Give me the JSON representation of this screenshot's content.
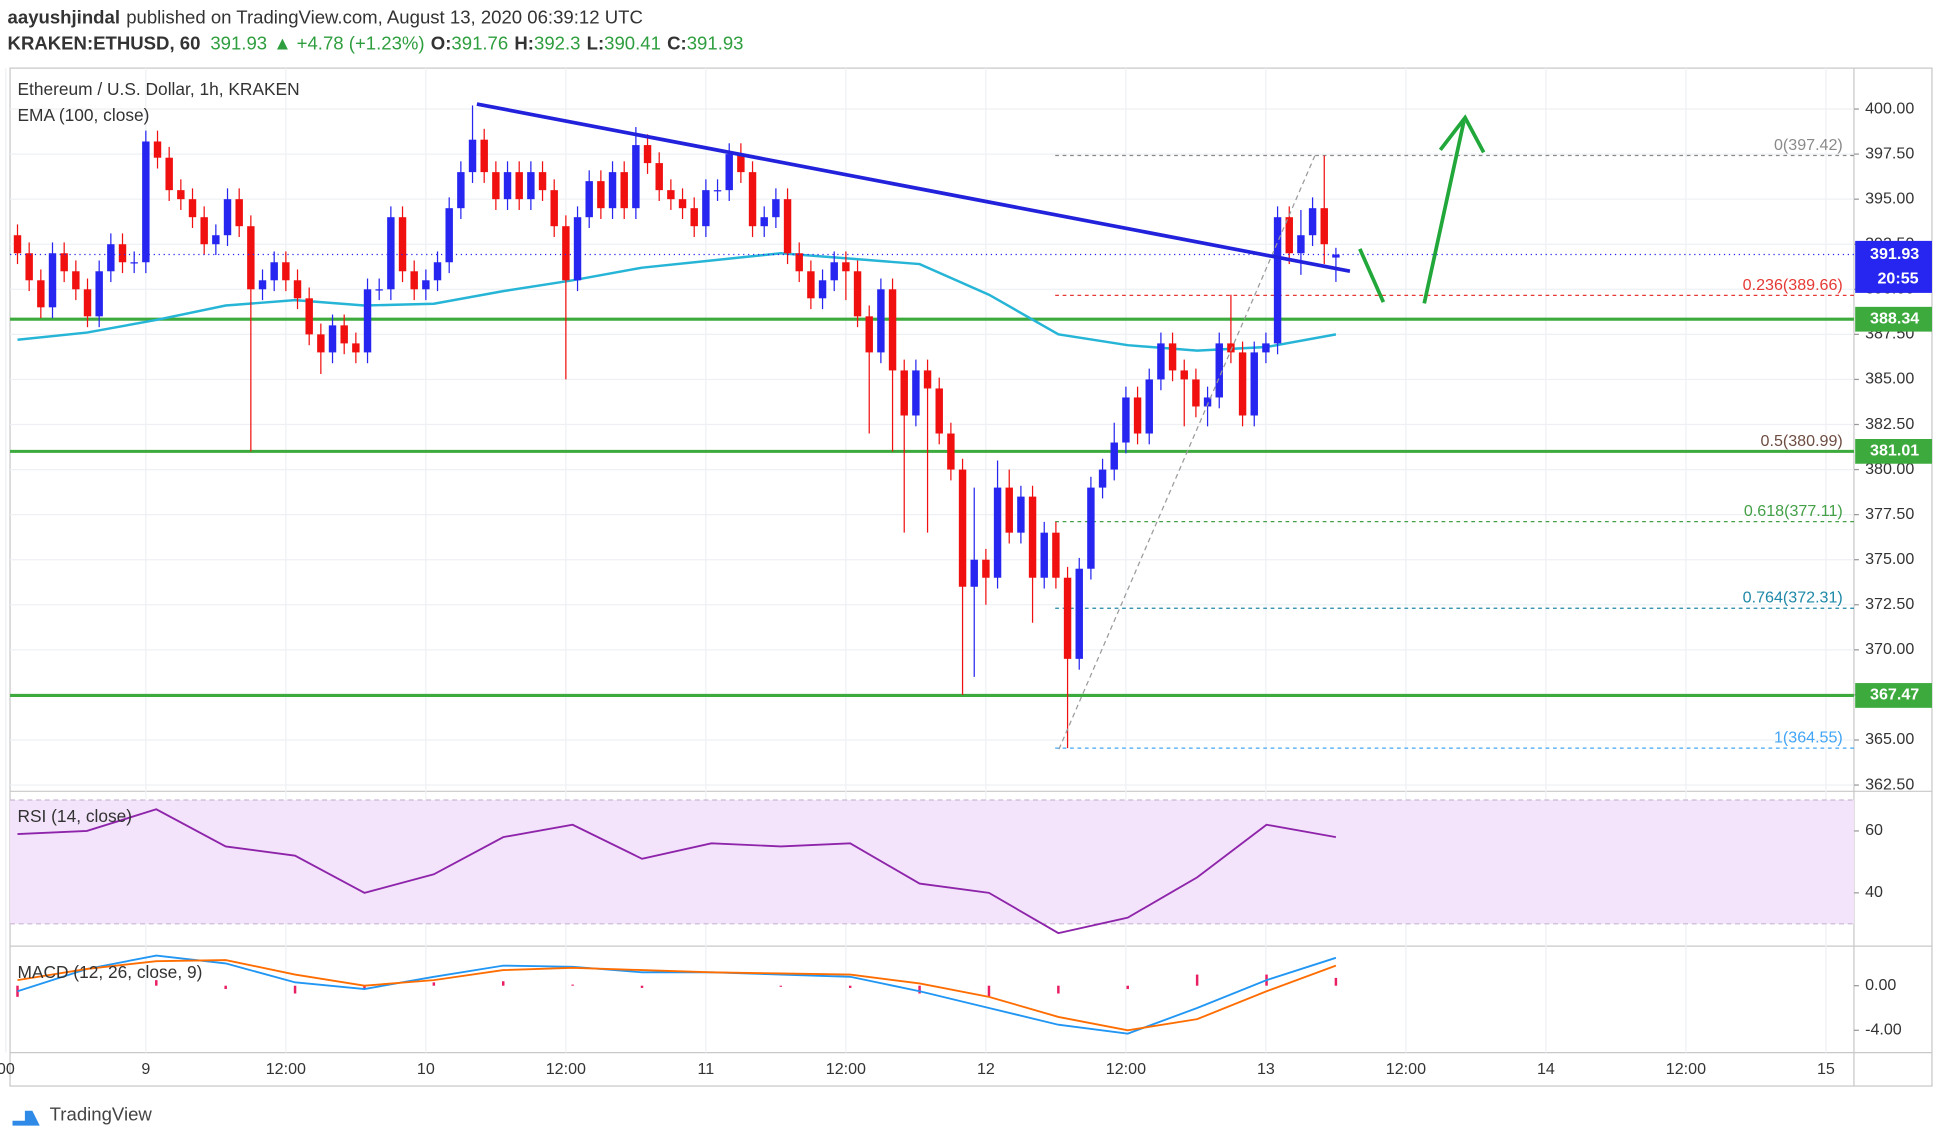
{
  "header": {
    "author": "aayushjindal",
    "published": "published on TradingView.com, August 13, 2020 06:39:12 UTC",
    "symbol": "KRAKEN:ETHUSD, 60",
    "price": 391.93,
    "change": "+4.78 (+1.23%)",
    "ohlc": [
      {
        "label": "O:",
        "value": 391.76
      },
      {
        "label": "H:",
        "value": 392.3
      },
      {
        "label": "L:",
        "value": 390.41
      },
      {
        "label": "C:",
        "value": 391.93
      }
    ]
  },
  "brand": "TradingView",
  "chart_data": {
    "type": "candlestick",
    "title": "Ethereum / U.S. Dollar, 1h, KRAKEN",
    "up_color": "#2626f0",
    "down_color": "#f01010",
    "grid": true,
    "xlim": [
      -0.64,
      157.4
    ],
    "xticks": [
      {
        "value": -1,
        "label": "00"
      },
      {
        "value": 11,
        "label": "9"
      },
      {
        "value": 23,
        "label": "12:00"
      },
      {
        "value": 35,
        "label": "10"
      },
      {
        "value": 47,
        "label": "12:00"
      },
      {
        "value": 59,
        "label": "11"
      },
      {
        "value": 71,
        "label": "12:00"
      },
      {
        "value": 83,
        "label": "12"
      },
      {
        "value": 95,
        "label": "12:00"
      },
      {
        "value": 107,
        "label": "13"
      },
      {
        "value": 119,
        "label": "12:00"
      },
      {
        "value": 131,
        "label": "14"
      },
      {
        "value": 143,
        "label": "12:00"
      },
      {
        "value": 155,
        "label": "15"
      }
    ],
    "ylim": [
      362.29,
      402.27
    ],
    "yticks": [
      {
        "value": 362.5,
        "label": "362.50"
      },
      {
        "value": 365,
        "label": "365.00"
      },
      {
        "value": 367.5,
        "label": "367.50"
      },
      {
        "value": 370,
        "label": "370.00"
      },
      {
        "value": 372.5,
        "label": "372.50"
      },
      {
        "value": 375,
        "label": "375.00"
      },
      {
        "value": 377.5,
        "label": "377.50"
      },
      {
        "value": 380,
        "label": "380.00"
      },
      {
        "value": 382.5,
        "label": "382.50"
      },
      {
        "value": 385,
        "label": "385.00"
      },
      {
        "value": 387.5,
        "label": "387.50"
      },
      {
        "value": 390,
        "label": "390.00"
      },
      {
        "value": 392.5,
        "label": "392.50"
      },
      {
        "value": 395,
        "label": "395.00"
      },
      {
        "value": 397.5,
        "label": "397.50"
      },
      {
        "value": 400,
        "label": "400.00"
      }
    ],
    "candles": {
      "open": [
        393,
        392,
        390.5,
        389,
        392,
        391,
        390,
        388.5,
        391,
        392.5,
        391.5,
        391.5,
        398.2,
        397.3,
        395.5,
        395,
        394,
        392.5,
        393,
        395,
        393.5,
        390,
        390.5,
        391.5,
        390.5,
        389.5,
        387.5,
        386.5,
        388,
        387,
        386.5,
        390,
        390,
        394,
        391,
        390,
        390.5,
        391.5,
        394.5,
        396.5,
        398.3,
        396.5,
        395,
        396.5,
        395,
        396.5,
        395.5,
        393.5,
        390.5,
        394,
        396,
        394.5,
        396.5,
        394.5,
        398,
        397,
        395.5,
        395,
        394.5,
        393.5,
        395.5,
        395.5,
        397.5,
        396.5,
        393.5,
        394,
        395,
        392,
        391,
        389.5,
        390.5,
        391.5,
        391,
        388.5,
        386.5,
        390,
        385.5,
        383,
        385.5,
        384.5,
        382,
        380,
        373.5,
        375,
        374,
        379,
        376.5,
        378.5,
        374,
        376.5,
        374,
        369.5,
        374.5,
        379,
        380,
        381.5,
        384,
        382,
        385,
        387,
        385.5,
        385,
        383.5,
        384,
        387,
        386.5,
        383,
        386.5,
        387,
        394,
        392,
        393,
        394.5,
        391.76
      ],
      "high": [
        393.6,
        392.6,
        391.1,
        392.6,
        392.6,
        391.6,
        390.6,
        391.6,
        393.1,
        393.1,
        392.1,
        398.8,
        398.8,
        397.9,
        396.1,
        395.6,
        394.6,
        393.6,
        395.6,
        395.6,
        394.1,
        391.1,
        392.1,
        392.1,
        391.1,
        390.1,
        388.1,
        388.6,
        388.6,
        387.6,
        390.6,
        390.6,
        394.6,
        394.6,
        391.6,
        391.1,
        392.1,
        395.1,
        397.1,
        400.2,
        398.9,
        397.1,
        397.1,
        397.1,
        397.1,
        397.1,
        396.1,
        394.1,
        394.6,
        396.6,
        396.6,
        397.1,
        397.1,
        399,
        398.6,
        397.6,
        396.1,
        395.6,
        395.1,
        396.1,
        396.1,
        398.1,
        398.1,
        397.1,
        394.6,
        395.6,
        395.6,
        392.6,
        391.6,
        391.1,
        392.1,
        392.1,
        391.6,
        389.1,
        390.6,
        390.6,
        386.1,
        386.1,
        386.1,
        385.1,
        382.6,
        380.6,
        379,
        375.6,
        380.5,
        380,
        379.1,
        379.1,
        377.1,
        377.1,
        374.6,
        375.1,
        379.6,
        380.6,
        382.6,
        384.6,
        384.6,
        385.6,
        387.6,
        387.6,
        386.1,
        385.6,
        384.6,
        387.6,
        389.7,
        387.1,
        387.1,
        387.6,
        394.6,
        394.6,
        394.4,
        395.1,
        397.42,
        392.3
      ],
      "low": [
        391.4,
        389.9,
        388.4,
        388.4,
        390.4,
        389.4,
        387.9,
        387.9,
        390.4,
        390.9,
        390.9,
        390.9,
        396.7,
        394.9,
        394.4,
        393.4,
        391.9,
        391.9,
        392.4,
        392.9,
        381,
        389.4,
        389.9,
        389.9,
        388.9,
        386.9,
        385.3,
        385.9,
        386.4,
        385.9,
        385.9,
        389.4,
        389.4,
        390.4,
        389.4,
        389.4,
        389.9,
        390.9,
        393.9,
        395.9,
        395.9,
        394.4,
        394.4,
        394.4,
        394.4,
        394.9,
        392.9,
        385,
        389.9,
        393.4,
        393.9,
        393.9,
        393.9,
        393.9,
        396.4,
        394.9,
        394.4,
        393.9,
        392.9,
        392.9,
        394.9,
        394.9,
        395.9,
        392.9,
        392.9,
        393.4,
        391.4,
        390.4,
        388.9,
        388.9,
        389.9,
        389.4,
        387.9,
        382,
        385.9,
        381,
        376.5,
        382.4,
        376.5,
        381.4,
        379.4,
        367.5,
        368.5,
        372.5,
        373.4,
        375.9,
        375.9,
        371.5,
        373.4,
        373.4,
        364.55,
        368.9,
        373.9,
        378.4,
        379.4,
        380.9,
        381.4,
        381.4,
        384.4,
        384.9,
        382.4,
        382.9,
        382.4,
        383.4,
        385.9,
        382.4,
        382.4,
        385.9,
        386.4,
        391.4,
        390.8,
        392.4,
        391.4,
        390.41
      ],
      "close": [
        392,
        390.5,
        389,
        392,
        391,
        390,
        388.5,
        391,
        392.5,
        391.5,
        391.5,
        398.2,
        397.3,
        395.5,
        395,
        394,
        392.5,
        393,
        395,
        393.5,
        390,
        390.5,
        391.5,
        390.5,
        389.5,
        387.5,
        386.5,
        388,
        387,
        386.5,
        390,
        390,
        394,
        391,
        390,
        390.5,
        391.5,
        394.5,
        396.5,
        398.3,
        396.5,
        395,
        396.5,
        395,
        396.5,
        395.5,
        393.5,
        390.5,
        394,
        396,
        394.5,
        396.5,
        394.5,
        398,
        397,
        395.5,
        395,
        394.5,
        393.5,
        395.5,
        395.5,
        397.5,
        396.5,
        393.5,
        394,
        395,
        392,
        391,
        389.5,
        390.5,
        391.5,
        391,
        388.5,
        386.5,
        390,
        385.5,
        383,
        385.5,
        384.5,
        382,
        380,
        373.5,
        375,
        374,
        379,
        376.5,
        378.5,
        374,
        376.5,
        374,
        369.5,
        374.5,
        379,
        380,
        381.5,
        384,
        382,
        385,
        387,
        385.5,
        385,
        383.5,
        384,
        387,
        386.5,
        383,
        386.5,
        387,
        394,
        392,
        393,
        394.5,
        392.5,
        391.93
      ]
    },
    "ema": {
      "name": "EMA (100, close)",
      "color": "#26b5d6",
      "values": [
        387.2,
        387.6,
        388.3,
        389.1,
        389.4,
        389.1,
        389.2,
        389.9,
        390.5,
        391.2,
        391.6,
        392.0,
        391.7,
        391.4,
        389.7,
        387.5,
        386.9,
        386.6,
        386.8,
        387.5
      ]
    },
    "last_price": {
      "value": 391.93,
      "countdown": "20:55",
      "color": "#2626f0"
    },
    "levels": {
      "color": "#3caa3c",
      "values": [
        388.34,
        381.01,
        367.47
      ]
    },
    "fib": [
      {
        "value": 397.42,
        "label": "0(397.42)",
        "color": "#8a8a8a"
      },
      {
        "value": 389.66,
        "label": "0.236(389.66)",
        "color": "#e53935"
      },
      {
        "value": 380.99,
        "label": "0.5(380.99)",
        "color": "#6d4c41"
      },
      {
        "value": 377.11,
        "label": "0.618(377.11)",
        "color": "#43a047"
      },
      {
        "value": 372.31,
        "label": "0.764(372.31)",
        "color": "#1e88a8"
      },
      {
        "value": 364.55,
        "label": "1(364.55)",
        "color": "#42a5f5"
      }
    ],
    "rsi": {
      "name": "RSI (14, close)",
      "color": "#8e24aa",
      "band": [
        30,
        70
      ],
      "ylim": [
        23.2,
        72.4
      ],
      "yticks": [
        40,
        60
      ],
      "values": [
        59,
        60,
        67,
        55,
        52,
        40,
        46,
        58,
        62,
        51,
        56,
        55,
        56,
        43,
        40,
        27,
        32,
        45,
        62,
        58
      ]
    },
    "macd": {
      "name": "MACD (12, 26, close, 9)",
      "ylim": [
        -6,
        3.44
      ],
      "yticks": [
        {
          "value": 0,
          "label": "0.00"
        },
        {
          "value": -4,
          "label": "-4.00"
        }
      ],
      "series": [
        {
          "color": "#2196f3",
          "values": [
            -0.5,
            1.5,
            2.7,
            2.0,
            0.3,
            -0.3,
            0.8,
            1.8,
            1.7,
            1.2,
            1.2,
            1.0,
            0.8,
            -0.5,
            -2.0,
            -3.5,
            -4.3,
            -2.0,
            0.5,
            2.5
          ]
        },
        {
          "color": "#ff6d00",
          "values": [
            0.5,
            1.5,
            2.2,
            2.3,
            1.0,
            0.0,
            0.5,
            1.4,
            1.6,
            1.4,
            1.2,
            1.1,
            1.0,
            0.2,
            -1.0,
            -2.8,
            -4.0,
            -3.0,
            -0.5,
            1.8
          ]
        }
      ],
      "histogram": {
        "color": "#e91e63",
        "values": [
          -1.0,
          0,
          0.5,
          -0.3,
          -0.7,
          -0.3,
          0.3,
          0.4,
          0.1,
          -0.2,
          0,
          -0.1,
          -0.2,
          -0.7,
          -1.0,
          -0.7,
          -0.3,
          1.0,
          1.0,
          0.7
        ]
      }
    }
  }
}
